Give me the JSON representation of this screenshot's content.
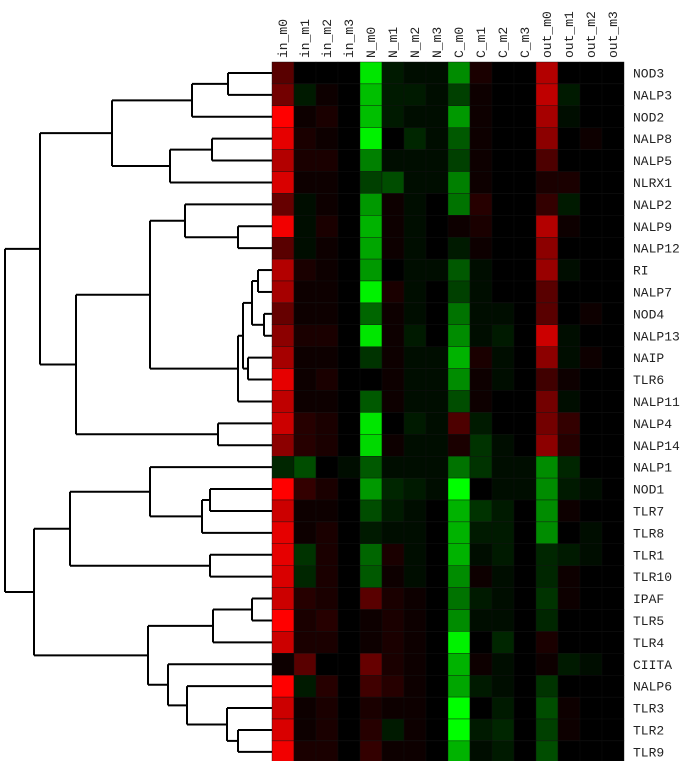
{
  "chart_data": {
    "type": "heatmap",
    "title": "",
    "color_scale": {
      "low": "#00ff00",
      "mid": "#000000",
      "high": "#ff0000",
      "min": -1,
      "max": 1
    },
    "columns": [
      "in_m0",
      "in_m1",
      "in_m2",
      "in_m3",
      "N_m0",
      "N_m1",
      "N_m2",
      "N_m3",
      "C_m0",
      "C_m1",
      "C_m2",
      "C_m3",
      "out_m0",
      "out_m1",
      "out_m2",
      "out_m3"
    ],
    "rows": [
      "NOD3",
      "NALP3",
      "NOD2",
      "NALP8",
      "NALP5",
      "NLRX1",
      "NALP2",
      "NALP9",
      "NALP12",
      "RI",
      "NALP7",
      "NOD4",
      "NALP13",
      "NAIP",
      "TLR6",
      "NALP11",
      "NALP4",
      "NALP14",
      "NALP1",
      "NOD1",
      "TLR7",
      "TLR8",
      "TLR1",
      "TLR10",
      "IPAF",
      "TLR5",
      "TLR4",
      "CIITA",
      "NALP6",
      "TLR3",
      "TLR2",
      "TLR9"
    ],
    "values": [
      [
        0.35,
        0.0,
        0.0,
        0.0,
        -0.9,
        -0.1,
        -0.05,
        -0.05,
        -0.55,
        0.1,
        0.0,
        0.0,
        0.7,
        0.0,
        0.0,
        0.0
      ],
      [
        0.45,
        -0.1,
        0.05,
        0.0,
        -0.75,
        -0.1,
        -0.1,
        -0.05,
        -0.25,
        0.05,
        0.0,
        0.0,
        0.75,
        -0.1,
        0.0,
        0.0
      ],
      [
        1.0,
        0.05,
        0.1,
        0.0,
        -0.75,
        -0.1,
        -0.05,
        -0.05,
        -0.6,
        0.05,
        0.0,
        0.0,
        0.65,
        -0.05,
        0.0,
        0.0
      ],
      [
        0.9,
        0.1,
        0.05,
        0.0,
        -0.95,
        0.0,
        -0.15,
        -0.05,
        -0.35,
        0.05,
        0.0,
        0.0,
        0.55,
        0.0,
        0.05,
        0.0
      ],
      [
        0.7,
        0.1,
        0.1,
        0.0,
        -0.5,
        -0.05,
        -0.05,
        -0.05,
        -0.25,
        0.05,
        0.0,
        0.0,
        0.3,
        0.0,
        0.0,
        0.0
      ],
      [
        0.85,
        0.05,
        0.05,
        0.0,
        -0.25,
        -0.3,
        -0.05,
        -0.05,
        -0.5,
        0.05,
        0.0,
        0.0,
        0.1,
        0.1,
        0.0,
        0.0
      ],
      [
        0.4,
        -0.05,
        0.05,
        0.0,
        -0.6,
        0.05,
        -0.05,
        0.0,
        -0.45,
        0.15,
        0.0,
        0.0,
        0.2,
        -0.1,
        0.0,
        0.0
      ],
      [
        0.95,
        -0.05,
        0.1,
        0.0,
        -0.7,
        0.05,
        -0.05,
        0.0,
        0.05,
        0.1,
        0.0,
        0.0,
        0.7,
        0.05,
        0.0,
        0.0
      ],
      [
        0.35,
        -0.05,
        0.05,
        0.0,
        -0.65,
        0.05,
        -0.05,
        0.0,
        -0.1,
        0.05,
        0.0,
        0.0,
        0.55,
        0.0,
        0.0,
        0.0
      ],
      [
        0.7,
        0.1,
        0.05,
        0.0,
        -0.6,
        0.0,
        -0.05,
        -0.05,
        -0.35,
        -0.05,
        0.0,
        0.0,
        0.6,
        -0.05,
        0.0,
        0.0
      ],
      [
        0.65,
        0.05,
        0.05,
        0.0,
        -0.95,
        0.1,
        -0.05,
        0.0,
        -0.25,
        -0.05,
        0.0,
        0.0,
        0.35,
        0.0,
        0.0,
        0.0
      ],
      [
        0.4,
        0.05,
        0.05,
        0.0,
        -0.4,
        0.05,
        -0.05,
        0.0,
        -0.45,
        -0.05,
        -0.05,
        0.0,
        0.35,
        0.0,
        0.05,
        0.0
      ],
      [
        0.55,
        0.1,
        0.1,
        0.0,
        -0.9,
        0.05,
        -0.1,
        0.0,
        -0.55,
        -0.05,
        -0.1,
        0.0,
        0.8,
        -0.05,
        0.0,
        0.0
      ],
      [
        0.65,
        0.05,
        0.05,
        0.0,
        -0.2,
        0.05,
        -0.05,
        -0.05,
        -0.7,
        0.1,
        -0.05,
        0.0,
        0.55,
        -0.05,
        0.05,
        0.0
      ],
      [
        0.9,
        0.05,
        0.1,
        0.0,
        0.0,
        0.05,
        -0.05,
        -0.05,
        -0.55,
        0.05,
        -0.05,
        0.0,
        0.25,
        0.05,
        0.0,
        0.0
      ],
      [
        0.75,
        0.05,
        0.05,
        0.0,
        -0.35,
        0.05,
        -0.05,
        -0.05,
        -0.3,
        0.05,
        0.0,
        0.0,
        0.45,
        -0.05,
        0.0,
        0.0
      ],
      [
        0.8,
        0.15,
        0.1,
        0.0,
        -0.9,
        0.0,
        -0.1,
        -0.05,
        0.3,
        -0.1,
        0.0,
        0.0,
        0.45,
        0.2,
        0.0,
        0.0
      ],
      [
        0.55,
        0.15,
        0.1,
        0.0,
        -0.85,
        0.05,
        -0.05,
        -0.05,
        0.1,
        -0.2,
        -0.05,
        0.0,
        0.55,
        0.15,
        0.0,
        0.0
      ],
      [
        -0.15,
        -0.3,
        0.0,
        -0.05,
        -0.35,
        -0.05,
        -0.05,
        -0.05,
        -0.45,
        -0.2,
        -0.05,
        -0.05,
        -0.55,
        -0.15,
        0.0,
        0.0
      ],
      [
        1.0,
        0.2,
        0.1,
        0.0,
        -0.6,
        -0.15,
        -0.1,
        -0.05,
        -1.0,
        0.0,
        -0.05,
        -0.05,
        -0.55,
        -0.1,
        -0.05,
        0.0
      ],
      [
        0.8,
        0.05,
        0.05,
        0.0,
        -0.3,
        -0.1,
        -0.05,
        0.0,
        -0.7,
        -0.2,
        -0.1,
        0.0,
        -0.55,
        0.05,
        0.0,
        0.0
      ],
      [
        0.9,
        0.05,
        0.1,
        0.0,
        -0.1,
        -0.05,
        -0.05,
        0.0,
        -0.7,
        -0.1,
        -0.1,
        0.0,
        -0.55,
        0.0,
        -0.05,
        0.0
      ],
      [
        0.9,
        -0.2,
        0.1,
        0.0,
        -0.4,
        0.1,
        -0.05,
        0.0,
        -0.7,
        -0.05,
        -0.1,
        0.0,
        -0.15,
        -0.1,
        -0.05,
        0.0
      ],
      [
        0.85,
        -0.15,
        0.1,
        0.0,
        -0.35,
        0.05,
        -0.05,
        0.0,
        -0.55,
        0.05,
        -0.05,
        0.0,
        -0.15,
        0.05,
        0.0,
        0.0
      ],
      [
        0.8,
        0.15,
        0.1,
        0.0,
        0.35,
        0.1,
        0.05,
        0.0,
        -0.45,
        -0.1,
        -0.05,
        0.0,
        -0.2,
        0.05,
        0.0,
        0.0
      ],
      [
        1.0,
        0.1,
        0.15,
        0.0,
        0.05,
        0.1,
        0.05,
        0.0,
        -0.55,
        -0.05,
        -0.05,
        0.0,
        -0.15,
        0.0,
        0.0,
        0.0
      ],
      [
        0.8,
        0.1,
        0.1,
        0.0,
        0.05,
        0.1,
        0.05,
        0.0,
        -0.95,
        0.0,
        -0.15,
        0.0,
        0.1,
        0.0,
        0.0,
        0.0
      ],
      [
        0.05,
        0.35,
        0.0,
        0.0,
        0.4,
        0.1,
        0.05,
        0.0,
        -0.7,
        0.05,
        -0.05,
        0.0,
        0.05,
        -0.1,
        -0.05,
        0.0
      ],
      [
        1.0,
        -0.1,
        0.15,
        0.0,
        0.25,
        0.15,
        0.05,
        0.0,
        -0.65,
        -0.1,
        -0.05,
        0.0,
        -0.2,
        0.0,
        0.0,
        0.0
      ],
      [
        0.8,
        0.05,
        0.1,
        0.0,
        0.1,
        0.05,
        0.05,
        0.0,
        -1.0,
        0.0,
        -0.1,
        0.0,
        -0.3,
        0.05,
        0.0,
        0.0
      ],
      [
        0.85,
        0.05,
        0.1,
        0.0,
        0.15,
        -0.1,
        0.05,
        0.0,
        -1.0,
        -0.1,
        -0.15,
        0.0,
        -0.25,
        0.05,
        0.0,
        0.0
      ],
      [
        0.95,
        0.1,
        0.1,
        0.0,
        0.2,
        0.05,
        0.05,
        0.0,
        -0.7,
        -0.05,
        -0.1,
        0.0,
        -0.3,
        0.0,
        0.0,
        0.0
      ]
    ]
  }
}
